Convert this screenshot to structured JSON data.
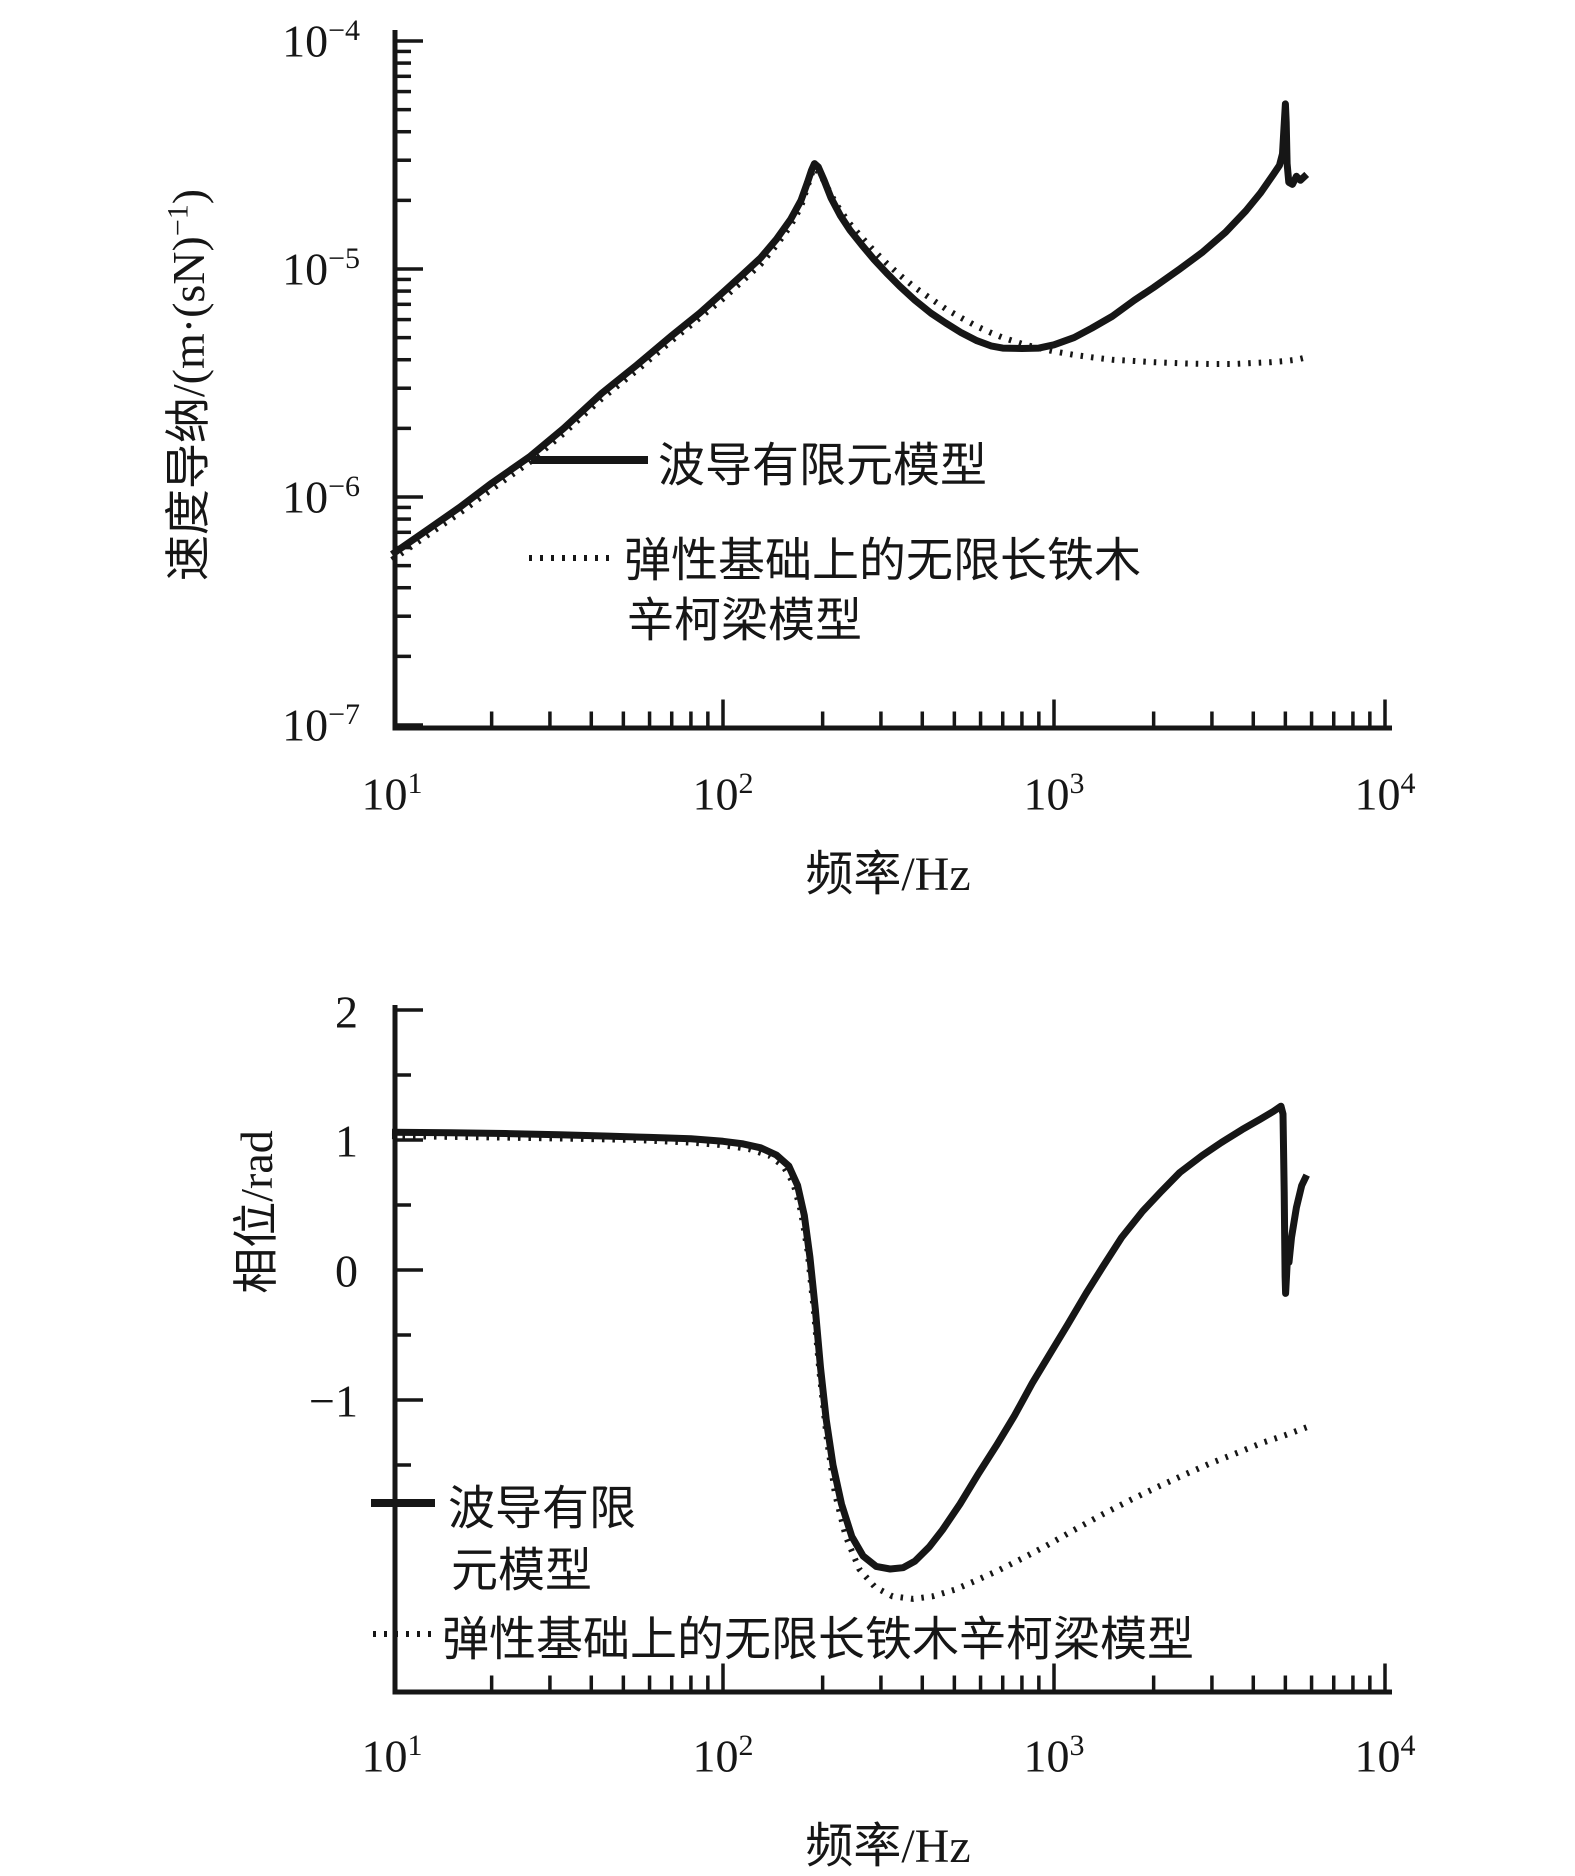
{
  "page": {
    "background": "#ffffff",
    "ink": "#161616"
  },
  "chart_data": [
    {
      "id": "mag",
      "type": "line",
      "title": "",
      "x_axis": {
        "label": "频率/Hz",
        "scale": "log",
        "min": 10,
        "max": 10000,
        "ticks": [
          {
            "base": "10",
            "exp": "1",
            "value": 10
          },
          {
            "base": "10",
            "exp": "2",
            "value": 100
          },
          {
            "base": "10",
            "exp": "3",
            "value": 1000
          },
          {
            "base": "10",
            "exp": "4",
            "value": 10000
          }
        ]
      },
      "y_axis": {
        "label": "速度导纳/(m·(sN)⁻¹)",
        "label_parts": {
          "prefix": "速度导纳/(m·(sN)",
          "sup": "−1",
          "suffix": ")"
        },
        "scale": "log",
        "min": 1e-07,
        "max": 0.0001,
        "ticks": [
          {
            "base": "10",
            "exp": "−4",
            "value": 0.0001
          },
          {
            "base": "10",
            "exp": "−5",
            "value": 1e-05
          },
          {
            "base": "10",
            "exp": "−6",
            "value": 1e-06
          },
          {
            "base": "10",
            "exp": "−7",
            "value": 1e-07
          }
        ]
      },
      "legend": [
        {
          "style": "solid",
          "lines": [
            "波导有限元模型"
          ]
        },
        {
          "style": "dotted",
          "lines": [
            "弹性基础上的无限长铁木",
            "辛柯梁模型"
          ]
        }
      ],
      "series": [
        {
          "name": "波导有限元模型",
          "style": "solid",
          "points": [
            [
              10,
              5.6e-07
            ],
            [
              13,
              7.3e-07
            ],
            [
              16,
              9e-07
            ],
            [
              20,
              1.15e-06
            ],
            [
              26,
              1.5e-06
            ],
            [
              33,
              2e-06
            ],
            [
              43,
              2.85e-06
            ],
            [
              55,
              3.8e-06
            ],
            [
              70,
              5.1e-06
            ],
            [
              85,
              6.4e-06
            ],
            [
              100,
              7.9e-06
            ],
            [
              115,
              9.5e-06
            ],
            [
              130,
              1.12e-05
            ],
            [
              145,
              1.35e-05
            ],
            [
              160,
              1.65e-05
            ],
            [
              172,
              2e-05
            ],
            [
              180,
              2.4e-05
            ],
            [
              185,
              2.7e-05
            ],
            [
              189,
              2.9e-05
            ],
            [
              194,
              2.8e-05
            ],
            [
              202,
              2.45e-05
            ],
            [
              212,
              2.05e-05
            ],
            [
              226,
              1.72e-05
            ],
            [
              242,
              1.48e-05
            ],
            [
              262,
              1.28e-05
            ],
            [
              286,
              1.1e-05
            ],
            [
              312,
              9.6e-06
            ],
            [
              342,
              8.4e-06
            ],
            [
              380,
              7.3e-06
            ],
            [
              425,
              6.4e-06
            ],
            [
              470,
              5.8e-06
            ],
            [
              525,
              5.25e-06
            ],
            [
              585,
              4.85e-06
            ],
            [
              645,
              4.6e-06
            ],
            [
              700,
              4.5e-06
            ],
            [
              800,
              4.48e-06
            ],
            [
              900,
              4.5e-06
            ],
            [
              1000,
              4.65e-06
            ],
            [
              1150,
              5e-06
            ],
            [
              1300,
              5.5e-06
            ],
            [
              1500,
              6.2e-06
            ],
            [
              1750,
              7.3e-06
            ],
            [
              2000,
              8.3e-06
            ],
            [
              2400,
              1e-05
            ],
            [
              2800,
              1.18e-05
            ],
            [
              3300,
              1.45e-05
            ],
            [
              3800,
              1.8e-05
            ],
            [
              4200,
              2.15e-05
            ],
            [
              4600,
              2.6e-05
            ],
            [
              4800,
              2.85e-05
            ],
            [
              4900,
              3.2e-05
            ],
            [
              4950,
              4.1e-05
            ],
            [
              5000,
              5.3e-05
            ],
            [
              5030,
              4.4e-05
            ],
            [
              5060,
              2.9e-05
            ],
            [
              5120,
              2.4e-05
            ],
            [
              5250,
              2.35e-05
            ],
            [
              5400,
              2.55e-05
            ],
            [
              5550,
              2.45e-05
            ],
            [
              5800,
              2.6e-05
            ]
          ]
        },
        {
          "name": "弹性基础上的无限长铁木辛柯梁模型",
          "style": "dotted",
          "points": [
            [
              10,
              5.3e-07
            ],
            [
              13,
              6.9e-07
            ],
            [
              16,
              8.5e-07
            ],
            [
              20,
              1.08e-06
            ],
            [
              26,
              1.42e-06
            ],
            [
              33,
              1.9e-06
            ],
            [
              43,
              2.7e-06
            ],
            [
              55,
              3.6e-06
            ],
            [
              70,
              4.85e-06
            ],
            [
              85,
              6.1e-06
            ],
            [
              100,
              7.4e-06
            ],
            [
              115,
              8.9e-06
            ],
            [
              130,
              1.05e-05
            ],
            [
              145,
              1.27e-05
            ],
            [
              160,
              1.55e-05
            ],
            [
              172,
              1.88e-05
            ],
            [
              180,
              2.3e-05
            ],
            [
              185,
              2.6e-05
            ],
            [
              189,
              2.78e-05
            ],
            [
              196,
              2.62e-05
            ],
            [
              206,
              2.3e-05
            ],
            [
              220,
              1.92e-05
            ],
            [
              240,
              1.6e-05
            ],
            [
              262,
              1.38e-05
            ],
            [
              286,
              1.2e-05
            ],
            [
              312,
              1.06e-05
            ],
            [
              342,
              9.4e-06
            ],
            [
              380,
              8.3e-06
            ],
            [
              425,
              7.4e-06
            ],
            [
              470,
              6.7e-06
            ],
            [
              525,
              6.1e-06
            ],
            [
              585,
              5.6e-06
            ],
            [
              645,
              5.25e-06
            ],
            [
              700,
              5e-06
            ],
            [
              800,
              4.7e-06
            ],
            [
              900,
              4.5e-06
            ],
            [
              1000,
              4.35e-06
            ],
            [
              1150,
              4.2e-06
            ],
            [
              1300,
              4.1e-06
            ],
            [
              1500,
              4e-06
            ],
            [
              1750,
              3.95e-06
            ],
            [
              2000,
              3.9e-06
            ],
            [
              2500,
              3.85e-06
            ],
            [
              3000,
              3.83e-06
            ],
            [
              3500,
              3.83e-06
            ],
            [
              4000,
              3.87e-06
            ],
            [
              4500,
              3.9e-06
            ],
            [
              5000,
              3.95e-06
            ],
            [
              5400,
              4e-06
            ],
            [
              5800,
              4.1e-06
            ]
          ]
        }
      ]
    },
    {
      "id": "phase",
      "type": "line",
      "title": "",
      "x_axis": {
        "label": "频率/Hz",
        "scale": "log",
        "min": 10,
        "max": 10000,
        "ticks": [
          {
            "base": "10",
            "exp": "1",
            "value": 10
          },
          {
            "base": "10",
            "exp": "2",
            "value": 100
          },
          {
            "base": "10",
            "exp": "3",
            "value": 1000
          },
          {
            "base": "10",
            "exp": "4",
            "value": 10000
          }
        ]
      },
      "y_axis": {
        "label": "相位/rad",
        "scale": "linear",
        "min": -3.25,
        "max": 2.05,
        "ticks": [
          {
            "label": "2",
            "value": 2
          },
          {
            "label": "1",
            "value": 1
          },
          {
            "label": "0",
            "value": 0
          },
          {
            "label": "−1",
            "value": -1
          }
        ],
        "minor_ticks": [
          1.5,
          0.5,
          -0.5,
          -1.5
        ]
      },
      "legend": [
        {
          "style": "solid",
          "lines": [
            "波导有限",
            "元模型"
          ]
        },
        {
          "style": "dotted",
          "lines": [
            "弹性基础上的无限长铁木辛柯梁模型"
          ]
        }
      ],
      "series": [
        {
          "name": "波导有限元模型",
          "style": "solid",
          "points": [
            [
              10,
              1.06
            ],
            [
              15,
              1.055
            ],
            [
              22,
              1.05
            ],
            [
              32,
              1.04
            ],
            [
              45,
              1.03
            ],
            [
              60,
              1.02
            ],
            [
              80,
              1.01
            ],
            [
              100,
              0.99
            ],
            [
              115,
              0.97
            ],
            [
              130,
              0.94
            ],
            [
              145,
              0.885
            ],
            [
              158,
              0.8
            ],
            [
              168,
              0.65
            ],
            [
              176,
              0.42
            ],
            [
              183,
              0.1
            ],
            [
              190,
              -0.3
            ],
            [
              197,
              -0.75
            ],
            [
              205,
              -1.15
            ],
            [
              215,
              -1.5
            ],
            [
              228,
              -1.8
            ],
            [
              245,
              -2.05
            ],
            [
              265,
              -2.2
            ],
            [
              290,
              -2.28
            ],
            [
              320,
              -2.3
            ],
            [
              350,
              -2.29
            ],
            [
              380,
              -2.24
            ],
            [
              420,
              -2.13
            ],
            [
              460,
              -2.0
            ],
            [
              520,
              -1.8
            ],
            [
              590,
              -1.57
            ],
            [
              670,
              -1.35
            ],
            [
              760,
              -1.12
            ],
            [
              860,
              -0.87
            ],
            [
              980,
              -0.63
            ],
            [
              1100,
              -0.42
            ],
            [
              1250,
              -0.18
            ],
            [
              1400,
              0.02
            ],
            [
              1600,
              0.25
            ],
            [
              1850,
              0.45
            ],
            [
              2100,
              0.6
            ],
            [
              2400,
              0.75
            ],
            [
              2800,
              0.88
            ],
            [
              3200,
              0.98
            ],
            [
              3700,
              1.08
            ],
            [
              4200,
              1.16
            ],
            [
              4600,
              1.22
            ],
            [
              4850,
              1.26
            ],
            [
              4920,
              1.2
            ],
            [
              4960,
              0.6
            ],
            [
              4990,
              -0.05
            ],
            [
              5010,
              -0.18
            ],
            [
              5040,
              -0.05
            ],
            [
              5080,
              0.12
            ],
            [
              5130,
              0.06
            ],
            [
              5220,
              0.25
            ],
            [
              5400,
              0.48
            ],
            [
              5600,
              0.65
            ],
            [
              5800,
              0.73
            ]
          ]
        },
        {
          "name": "弹性基础上的无限长铁木辛柯梁模型",
          "style": "dotted",
          "points": [
            [
              10,
              1.03
            ],
            [
              20,
              1.02
            ],
            [
              35,
              1.01
            ],
            [
              55,
              1.0
            ],
            [
              80,
              0.98
            ],
            [
              100,
              0.96
            ],
            [
              120,
              0.93
            ],
            [
              138,
              0.88
            ],
            [
              152,
              0.8
            ],
            [
              163,
              0.67
            ],
            [
              172,
              0.45
            ],
            [
              180,
              0.15
            ],
            [
              188,
              -0.3
            ],
            [
              196,
              -0.8
            ],
            [
              206,
              -1.3
            ],
            [
              218,
              -1.72
            ],
            [
              235,
              -2.05
            ],
            [
              258,
              -2.3
            ],
            [
              288,
              -2.44
            ],
            [
              325,
              -2.51
            ],
            [
              375,
              -2.53
            ],
            [
              430,
              -2.51
            ],
            [
              500,
              -2.46
            ],
            [
              580,
              -2.39
            ],
            [
              680,
              -2.31
            ],
            [
              800,
              -2.22
            ],
            [
              950,
              -2.12
            ],
            [
              1150,
              -2.0
            ],
            [
              1400,
              -1.88
            ],
            [
              1700,
              -1.77
            ],
            [
              2050,
              -1.67
            ],
            [
              2450,
              -1.58
            ],
            [
              2950,
              -1.49
            ],
            [
              3550,
              -1.41
            ],
            [
              4250,
              -1.33
            ],
            [
              5000,
              -1.27
            ],
            [
              5800,
              -1.21
            ]
          ]
        }
      ]
    }
  ]
}
